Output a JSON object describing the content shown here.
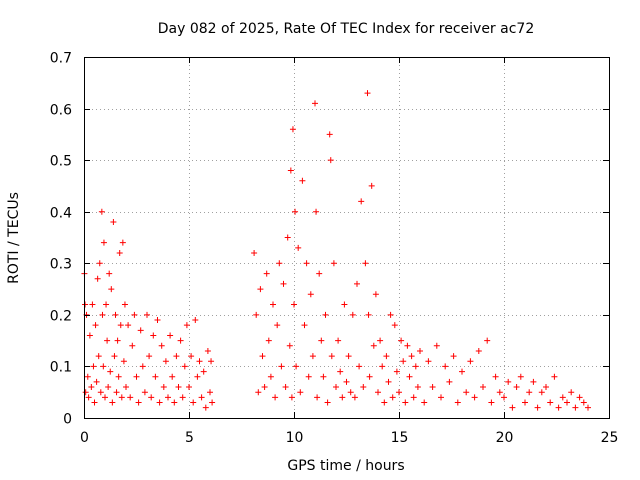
{
  "chart_data": {
    "type": "scatter",
    "title": "Day 082 of 2025, Rate Of TEC Index for receiver ac72",
    "xlabel": "GPS time / hours",
    "ylabel": "ROTI / TECUs",
    "xlim": [
      0,
      25
    ],
    "ylim": [
      0,
      0.7
    ],
    "xticks": [
      "0",
      "5",
      "10",
      "15",
      "20",
      "25"
    ],
    "yticks": [
      "0",
      "0.1",
      "0.2",
      "0.3",
      "0.4",
      "0.5",
      "0.6",
      "0.7"
    ],
    "grid": true,
    "marker": "+",
    "color": "#ff0000",
    "series": [
      {
        "points": [
          [
            0.02,
            0.28
          ],
          [
            0.05,
            0.22
          ],
          [
            0.08,
            0.05
          ],
          [
            0.12,
            0.2
          ],
          [
            0.18,
            0.08
          ],
          [
            0.22,
            0.04
          ],
          [
            0.28,
            0.16
          ],
          [
            0.35,
            0.06
          ],
          [
            0.4,
            0.22
          ],
          [
            0.45,
            0.1
          ],
          [
            0.5,
            0.03
          ],
          [
            0.55,
            0.18
          ],
          [
            0.6,
            0.07
          ],
          [
            0.65,
            0.27
          ],
          [
            0.7,
            0.12
          ],
          [
            0.75,
            0.3
          ],
          [
            0.8,
            0.05
          ],
          [
            0.85,
            0.4
          ],
          [
            0.88,
            0.2
          ],
          [
            0.92,
            0.1
          ],
          [
            0.95,
            0.34
          ],
          [
            1.0,
            0.04
          ],
          [
            1.05,
            0.22
          ],
          [
            1.1,
            0.15
          ],
          [
            1.15,
            0.06
          ],
          [
            1.2,
            0.28
          ],
          [
            1.25,
            0.09
          ],
          [
            1.3,
            0.25
          ],
          [
            1.35,
            0.03
          ],
          [
            1.4,
            0.38
          ],
          [
            1.45,
            0.12
          ],
          [
            1.5,
            0.2
          ],
          [
            1.55,
            0.05
          ],
          [
            1.6,
            0.15
          ],
          [
            1.65,
            0.08
          ],
          [
            1.7,
            0.32
          ],
          [
            1.75,
            0.18
          ],
          [
            1.8,
            0.04
          ],
          [
            1.85,
            0.34
          ],
          [
            1.9,
            0.11
          ],
          [
            1.95,
            0.22
          ],
          [
            2.0,
            0.06
          ],
          [
            2.1,
            0.18
          ],
          [
            2.2,
            0.04
          ],
          [
            2.3,
            0.14
          ],
          [
            2.4,
            0.2
          ],
          [
            2.5,
            0.08
          ],
          [
            2.6,
            0.03
          ],
          [
            2.7,
            0.17
          ],
          [
            2.8,
            0.1
          ],
          [
            2.9,
            0.05
          ],
          [
            3.0,
            0.2
          ],
          [
            3.1,
            0.12
          ],
          [
            3.2,
            0.04
          ],
          [
            3.3,
            0.16
          ],
          [
            3.4,
            0.08
          ],
          [
            3.5,
            0.19
          ],
          [
            3.6,
            0.03
          ],
          [
            3.7,
            0.14
          ],
          [
            3.8,
            0.06
          ],
          [
            3.9,
            0.11
          ],
          [
            4.0,
            0.04
          ],
          [
            4.1,
            0.16
          ],
          [
            4.2,
            0.08
          ],
          [
            4.3,
            0.03
          ],
          [
            4.4,
            0.12
          ],
          [
            4.5,
            0.06
          ],
          [
            4.6,
            0.15
          ],
          [
            4.7,
            0.04
          ],
          [
            4.8,
            0.1
          ],
          [
            4.9,
            0.18
          ],
          [
            5.0,
            0.06
          ],
          [
            5.1,
            0.12
          ],
          [
            5.2,
            0.03
          ],
          [
            5.3,
            0.19
          ],
          [
            5.4,
            0.08
          ],
          [
            5.5,
            0.11
          ],
          [
            5.6,
            0.04
          ],
          [
            5.7,
            0.09
          ],
          [
            5.8,
            0.02
          ],
          [
            5.9,
            0.13
          ],
          [
            6.0,
            0.05
          ],
          [
            6.05,
            0.11
          ],
          [
            6.1,
            0.03
          ],
          [
            8.1,
            0.32
          ],
          [
            8.2,
            0.2
          ],
          [
            8.3,
            0.05
          ],
          [
            8.4,
            0.25
          ],
          [
            8.5,
            0.12
          ],
          [
            8.6,
            0.06
          ],
          [
            8.7,
            0.28
          ],
          [
            8.8,
            0.15
          ],
          [
            8.9,
            0.08
          ],
          [
            9.0,
            0.22
          ],
          [
            9.1,
            0.04
          ],
          [
            9.2,
            0.18
          ],
          [
            9.3,
            0.3
          ],
          [
            9.4,
            0.1
          ],
          [
            9.5,
            0.26
          ],
          [
            9.6,
            0.06
          ],
          [
            9.7,
            0.35
          ],
          [
            9.8,
            0.14
          ],
          [
            9.85,
            0.48
          ],
          [
            9.9,
            0.04
          ],
          [
            9.95,
            0.56
          ],
          [
            10.0,
            0.22
          ],
          [
            10.05,
            0.4
          ],
          [
            10.1,
            0.1
          ],
          [
            10.2,
            0.33
          ],
          [
            10.3,
            0.05
          ],
          [
            10.4,
            0.46
          ],
          [
            10.5,
            0.18
          ],
          [
            10.6,
            0.3
          ],
          [
            10.7,
            0.08
          ],
          [
            10.8,
            0.24
          ],
          [
            10.9,
            0.12
          ],
          [
            11.0,
            0.61
          ],
          [
            11.05,
            0.4
          ],
          [
            11.1,
            0.04
          ],
          [
            11.2,
            0.28
          ],
          [
            11.3,
            0.15
          ],
          [
            11.4,
            0.08
          ],
          [
            11.5,
            0.2
          ],
          [
            11.6,
            0.03
          ],
          [
            11.7,
            0.55
          ],
          [
            11.75,
            0.5
          ],
          [
            11.8,
            0.12
          ],
          [
            11.9,
            0.3
          ],
          [
            12.0,
            0.06
          ],
          [
            12.1,
            0.15
          ],
          [
            12.2,
            0.09
          ],
          [
            12.3,
            0.04
          ],
          [
            12.4,
            0.22
          ],
          [
            12.5,
            0.07
          ],
          [
            12.6,
            0.12
          ],
          [
            12.7,
            0.05
          ],
          [
            12.8,
            0.2
          ],
          [
            12.9,
            0.04
          ],
          [
            13.0,
            0.26
          ],
          [
            13.1,
            0.1
          ],
          [
            13.2,
            0.42
          ],
          [
            13.3,
            0.06
          ],
          [
            13.4,
            0.3
          ],
          [
            13.5,
            0.63
          ],
          [
            13.55,
            0.2
          ],
          [
            13.6,
            0.08
          ],
          [
            13.7,
            0.45
          ],
          [
            13.8,
            0.14
          ],
          [
            13.9,
            0.24
          ],
          [
            14.0,
            0.05
          ],
          [
            14.1,
            0.15
          ],
          [
            14.2,
            0.1
          ],
          [
            14.3,
            0.03
          ],
          [
            14.4,
            0.12
          ],
          [
            14.5,
            0.07
          ],
          [
            14.6,
            0.2
          ],
          [
            14.7,
            0.04
          ],
          [
            14.8,
            0.18
          ],
          [
            14.9,
            0.09
          ],
          [
            15.0,
            0.05
          ],
          [
            15.1,
            0.15
          ],
          [
            15.2,
            0.11
          ],
          [
            15.3,
            0.03
          ],
          [
            15.4,
            0.14
          ],
          [
            15.5,
            0.08
          ],
          [
            15.6,
            0.12
          ],
          [
            15.7,
            0.04
          ],
          [
            15.8,
            0.1
          ],
          [
            15.9,
            0.06
          ],
          [
            16.0,
            0.13
          ],
          [
            16.2,
            0.03
          ],
          [
            16.4,
            0.11
          ],
          [
            16.6,
            0.06
          ],
          [
            16.8,
            0.14
          ],
          [
            17.0,
            0.04
          ],
          [
            17.2,
            0.1
          ],
          [
            17.4,
            0.07
          ],
          [
            17.6,
            0.12
          ],
          [
            17.8,
            0.03
          ],
          [
            18.0,
            0.09
          ],
          [
            18.2,
            0.05
          ],
          [
            18.4,
            0.11
          ],
          [
            18.6,
            0.04
          ],
          [
            18.8,
            0.13
          ],
          [
            19.0,
            0.06
          ],
          [
            19.2,
            0.15
          ],
          [
            19.4,
            0.03
          ],
          [
            19.6,
            0.08
          ],
          [
            19.8,
            0.05
          ],
          [
            20.0,
            0.04
          ],
          [
            20.2,
            0.07
          ],
          [
            20.4,
            0.02
          ],
          [
            20.6,
            0.06
          ],
          [
            20.8,
            0.08
          ],
          [
            21.0,
            0.03
          ],
          [
            21.2,
            0.05
          ],
          [
            21.4,
            0.07
          ],
          [
            21.6,
            0.02
          ],
          [
            21.8,
            0.05
          ],
          [
            22.0,
            0.06
          ],
          [
            22.2,
            0.03
          ],
          [
            22.4,
            0.08
          ],
          [
            22.6,
            0.02
          ],
          [
            22.8,
            0.04
          ],
          [
            23.0,
            0.03
          ],
          [
            23.2,
            0.05
          ],
          [
            23.4,
            0.02
          ],
          [
            23.6,
            0.04
          ],
          [
            23.8,
            0.03
          ],
          [
            24.0,
            0.02
          ]
        ]
      }
    ]
  }
}
